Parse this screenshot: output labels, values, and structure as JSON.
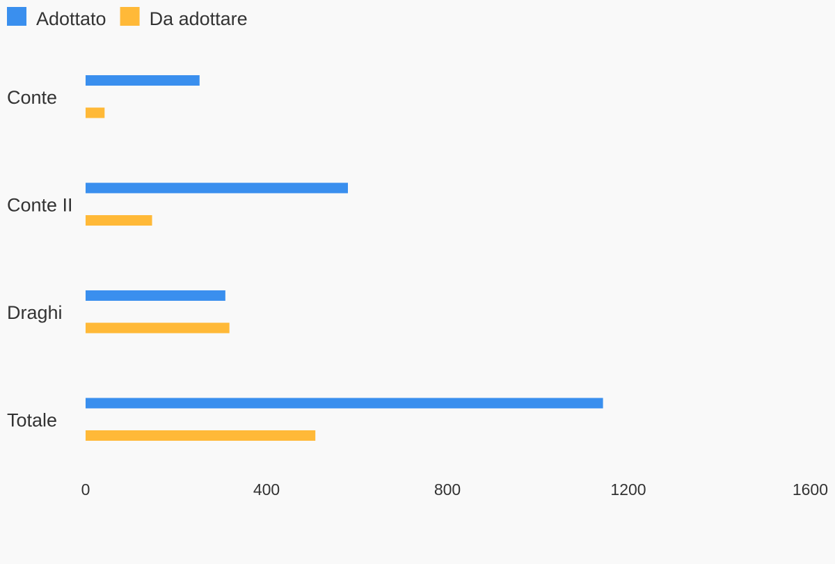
{
  "chart_data": {
    "type": "bar",
    "orientation": "horizontal",
    "categories": [
      "Conte",
      "Conte II",
      "Draghi",
      "Totale"
    ],
    "series": [
      {
        "name": "Adottato",
        "color": "#3a8fee",
        "values": [
          252,
          580,
          309,
          1144
        ]
      },
      {
        "name": "Da adottare",
        "color": "#ffb938",
        "values": [
          42,
          147,
          318,
          508
        ]
      }
    ],
    "xlim": [
      0,
      1600
    ],
    "xticks": [
      0,
      400,
      800,
      1200,
      1600
    ],
    "xtick_labels": [
      "0",
      "400",
      "800",
      "1200",
      "1600"
    ],
    "grid": false,
    "legend_position": "top-left"
  }
}
